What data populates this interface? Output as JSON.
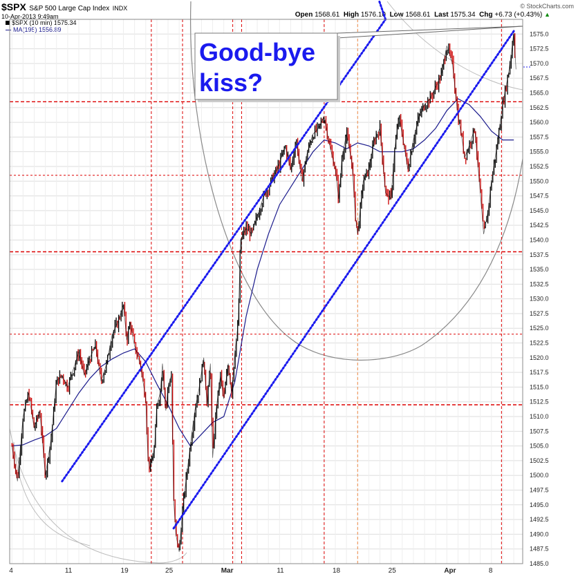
{
  "header": {
    "symbol": "$SPX",
    "name": "S&P 500 Large Cap Index",
    "exchange": "INDX",
    "timestamp": "10-Apr-2013 9:49am",
    "brand": "© StockCharts.com",
    "open_label": "Open",
    "open_value": "1568.61",
    "high_label": "High",
    "high_value": "1576.10",
    "low_label": "Low",
    "low_value": "1568.61",
    "last_label": "Last",
    "last_value": "1575.34",
    "chg_label": "Chg",
    "chg_value": "+6.73 (+0.43%)",
    "legend_price": "$SPX (10 min) 1575.34",
    "legend_ma": "MA(195) 1556.89"
  },
  "annotation": {
    "line1": "Good-bye",
    "line2": "kiss?"
  },
  "colors": {
    "candle": "#000000",
    "candle_down": "#cc0000",
    "ma": "#1a1a8c",
    "channel": "#1a1aee",
    "hline": "#dd0000",
    "vline": "#dd0000",
    "vline_orange": "#ee8844",
    "arc": "#888888",
    "arc_light": "#bbbbbb",
    "grid": "#dddddd"
  },
  "chart_data": {
    "type": "line",
    "title": "$SPX S&P 500 Large Cap Index INDX",
    "xlabel": "",
    "ylabel": "",
    "ylim": [
      1485,
      1577.5
    ],
    "y_ticks": [
      1485.0,
      1487.5,
      1490.0,
      1492.5,
      1495.0,
      1497.5,
      1500.0,
      1502.5,
      1505.0,
      1507.5,
      1510.0,
      1512.5,
      1515.0,
      1517.5,
      1520.0,
      1522.5,
      1525.0,
      1527.5,
      1530.0,
      1532.5,
      1535.0,
      1537.5,
      1540.0,
      1542.5,
      1545.0,
      1547.5,
      1550.0,
      1552.5,
      1555.0,
      1557.5,
      1560.0,
      1562.5,
      1565.0,
      1567.5,
      1570.0,
      1572.5,
      1575.0
    ],
    "x_ticks": [
      {
        "label": "4",
        "day": 0
      },
      {
        "label": "11",
        "day": 5
      },
      {
        "label": "19",
        "day": 10
      },
      {
        "label": "25",
        "day": 14
      },
      {
        "label": "Mar",
        "day": 19
      },
      {
        "label": "11",
        "day": 24
      },
      {
        "label": "18",
        "day": 29
      },
      {
        "label": "25",
        "day": 34
      },
      {
        "label": "Apr",
        "day": 39
      },
      {
        "label": "8",
        "day": 43
      }
    ],
    "series": [
      {
        "name": "$SPX (10 min)",
        "kind": "price",
        "points": [
          [
            0,
            1505
          ],
          [
            0.5,
            1499
          ],
          [
            1,
            1510
          ],
          [
            1.5,
            1514
          ],
          [
            2,
            1508
          ],
          [
            2.5,
            1511
          ],
          [
            3,
            1500
          ],
          [
            3.5,
            1506
          ],
          [
            4,
            1516
          ],
          [
            4.5,
            1517
          ],
          [
            5,
            1515
          ],
          [
            5.5,
            1518
          ],
          [
            6,
            1521
          ],
          [
            6.5,
            1517
          ],
          [
            7,
            1520
          ],
          [
            7.5,
            1522
          ],
          [
            8,
            1516
          ],
          [
            8.5,
            1519
          ],
          [
            9,
            1524
          ],
          [
            9.5,
            1526
          ],
          [
            10,
            1529
          ],
          [
            10.3,
            1523
          ],
          [
            10.6,
            1526
          ],
          [
            11,
            1522
          ],
          [
            11.5,
            1519
          ],
          [
            12,
            1513
          ],
          [
            12.2,
            1503
          ],
          [
            12.4,
            1501
          ],
          [
            12.8,
            1505
          ],
          [
            13,
            1512
          ],
          [
            13.3,
            1514
          ],
          [
            13.5,
            1519
          ],
          [
            13.8,
            1511
          ],
          [
            14,
            1515
          ],
          [
            14.3,
            1517
          ],
          [
            14.5,
            1496
          ],
          [
            14.7,
            1490
          ],
          [
            15,
            1487
          ],
          [
            15.3,
            1494
          ],
          [
            15.6,
            1499
          ],
          [
            16,
            1505
          ],
          [
            16.4,
            1511
          ],
          [
            16.8,
            1515
          ],
          [
            17.2,
            1520
          ],
          [
            17.5,
            1512
          ],
          [
            17.8,
            1519
          ],
          [
            18,
            1503
          ],
          [
            18.3,
            1511
          ],
          [
            18.7,
            1517
          ],
          [
            19,
            1513
          ],
          [
            19.4,
            1519
          ],
          [
            19.7,
            1514
          ],
          [
            20,
            1521
          ],
          [
            20.3,
            1526
          ],
          [
            20.5,
            1540
          ],
          [
            21,
            1542
          ],
          [
            21.5,
            1541
          ],
          [
            22,
            1544
          ],
          [
            22.5,
            1547
          ],
          [
            23,
            1549
          ],
          [
            23.5,
            1551
          ],
          [
            24,
            1553
          ],
          [
            24.5,
            1556
          ],
          [
            25,
            1552
          ],
          [
            25.5,
            1557
          ],
          [
            26,
            1550
          ],
          [
            26.5,
            1555
          ],
          [
            27,
            1558
          ],
          [
            27.5,
            1559
          ],
          [
            28,
            1561
          ],
          [
            28.5,
            1556
          ],
          [
            29,
            1552
          ],
          [
            29.3,
            1547
          ],
          [
            29.6,
            1554
          ],
          [
            30,
            1558
          ],
          [
            30.5,
            1553
          ],
          [
            30.8,
            1544
          ],
          [
            31,
            1541
          ],
          [
            31.5,
            1550
          ],
          [
            32,
            1552
          ],
          [
            32.5,
            1557
          ],
          [
            33,
            1559
          ],
          [
            33.5,
            1548
          ],
          [
            34,
            1547
          ],
          [
            34.3,
            1555
          ],
          [
            34.7,
            1561
          ],
          [
            35,
            1558
          ],
          [
            35.5,
            1552
          ],
          [
            36,
            1557
          ],
          [
            36.5,
            1561
          ],
          [
            37,
            1563
          ],
          [
            37.5,
            1564
          ],
          [
            38,
            1566
          ],
          [
            38.5,
            1568
          ],
          [
            39,
            1573
          ],
          [
            39.5,
            1570
          ],
          [
            40,
            1561
          ],
          [
            40.3,
            1558
          ],
          [
            40.6,
            1554
          ],
          [
            41,
            1556
          ],
          [
            41.5,
            1559
          ],
          [
            42,
            1548
          ],
          [
            42.3,
            1541
          ],
          [
            42.7,
            1545
          ],
          [
            43,
            1550
          ],
          [
            43.5,
            1556
          ],
          [
            44,
            1563
          ],
          [
            44.5,
            1568
          ],
          [
            44.8,
            1572
          ],
          [
            45,
            1575.3
          ],
          [
            45.2,
            1569
          ]
        ]
      },
      {
        "name": "MA(195)",
        "kind": "ma",
        "points": [
          [
            0,
            1505
          ],
          [
            1,
            1505.2
          ],
          [
            2,
            1506
          ],
          [
            3,
            1506.7
          ],
          [
            4,
            1508
          ],
          [
            5,
            1511
          ],
          [
            6,
            1514
          ],
          [
            7,
            1516.5
          ],
          [
            8,
            1518.5
          ],
          [
            9,
            1519.8
          ],
          [
            10,
            1520.8
          ],
          [
            11,
            1521.5
          ],
          [
            12,
            1519.3
          ],
          [
            13,
            1515.5
          ],
          [
            14,
            1512
          ],
          [
            15,
            1508
          ],
          [
            16,
            1505
          ],
          [
            17,
            1507
          ],
          [
            18,
            1509
          ],
          [
            19,
            1510
          ],
          [
            20,
            1516
          ],
          [
            21,
            1527
          ],
          [
            22,
            1535
          ],
          [
            23,
            1541
          ],
          [
            24,
            1546
          ],
          [
            25,
            1549
          ],
          [
            26,
            1552
          ],
          [
            27,
            1555
          ],
          [
            28,
            1557
          ],
          [
            29,
            1556.5
          ],
          [
            30,
            1555.5
          ],
          [
            31,
            1556.5
          ],
          [
            32,
            1556
          ],
          [
            33,
            1555
          ],
          [
            34,
            1555
          ],
          [
            35,
            1555
          ],
          [
            36,
            1555.5
          ],
          [
            37,
            1557
          ],
          [
            38,
            1559
          ],
          [
            39,
            1562
          ],
          [
            40,
            1564
          ],
          [
            41,
            1563
          ],
          [
            42,
            1561
          ],
          [
            43,
            1558.5
          ],
          [
            44,
            1557
          ],
          [
            45,
            1557
          ]
        ]
      }
    ],
    "channel_lines": [
      {
        "style": "dotted",
        "points": [
          [
            4.5,
            1499
          ],
          [
            33.5,
            1577.5
          ]
        ]
      },
      {
        "style": "dotted",
        "points": [
          [
            14.5,
            1491
          ],
          [
            45,
            1575.5
          ]
        ]
      }
    ],
    "horizontal_levels": [
      1512,
      1524,
      1538,
      1551,
      1563.5
    ],
    "vertical_marks": [
      {
        "day": 12.5,
        "color": "red"
      },
      {
        "day": 15.3,
        "color": "red"
      },
      {
        "day": 19.8,
        "color": "red"
      },
      {
        "day": 20.6,
        "color": "red"
      },
      {
        "day": 28.0,
        "color": "red"
      },
      {
        "day": 31.0,
        "color": "orange"
      },
      {
        "day": 43.9,
        "color": "red"
      }
    ]
  }
}
